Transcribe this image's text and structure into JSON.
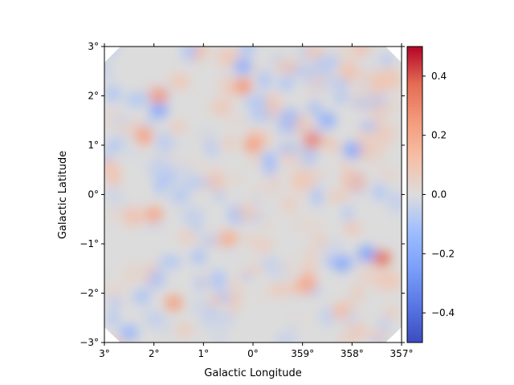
{
  "chart_data": {
    "type": "heatmap",
    "title": "",
    "xlabel": "Galactic Longitude",
    "ylabel": "Galactic Latitude",
    "x_ticks": [
      "3°",
      "2°",
      "1°",
      "0°",
      "359°",
      "358°",
      "357°"
    ],
    "y_ticks": [
      "3°",
      "2°",
      "1°",
      "0°",
      "−1°",
      "−2°",
      "−3°"
    ],
    "xlim_deg": [
      3,
      -3
    ],
    "ylim_deg": [
      -3,
      3
    ],
    "colormap": "coolwarm",
    "color_range": [
      -0.5,
      0.5
    ],
    "colorbar_ticks": [
      "0.4",
      "0.2",
      "0.0",
      "−0.2",
      "−0.4"
    ],
    "colorbar_tick_values": [
      0.4,
      0.2,
      0.0,
      -0.2,
      -0.4
    ],
    "field_description": "smoothed noise residual map, values mostly between -0.25 and 0.3",
    "hotspots": [
      {
        "l": -2.6,
        "b": -1.3,
        "value": 0.35
      },
      {
        "l": -1.2,
        "b": 1.1,
        "value": 0.3
      },
      {
        "l": 1.9,
        "b": 2.0,
        "value": 0.25
      },
      {
        "l": 0.2,
        "b": 2.2,
        "value": 0.25
      },
      {
        "l": 2.2,
        "b": 1.2,
        "value": 0.22
      },
      {
        "l": 0.0,
        "b": 1.0,
        "value": 0.22
      },
      {
        "l": 1.6,
        "b": -2.2,
        "value": 0.22
      },
      {
        "l": -1.1,
        "b": -1.8,
        "value": 0.2
      },
      {
        "l": 2.0,
        "b": -0.4,
        "value": 0.2
      },
      {
        "l": 0.5,
        "b": -0.9,
        "value": 0.18
      },
      {
        "l": 1.9,
        "b": 1.7,
        "value": -0.2
      },
      {
        "l": -1.5,
        "b": 1.5,
        "value": -0.18
      },
      {
        "l": -2.0,
        "b": 0.9,
        "value": -0.2
      },
      {
        "l": 0.2,
        "b": 2.6,
        "value": -0.18
      },
      {
        "l": -2.3,
        "b": -1.2,
        "value": -0.22
      },
      {
        "l": -1.8,
        "b": -1.4,
        "value": -0.2
      },
      {
        "l": 2.5,
        "b": -2.8,
        "value": -0.15
      }
    ]
  }
}
